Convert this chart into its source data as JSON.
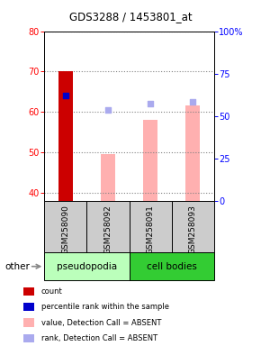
{
  "title": "GDS3288 / 1453801_at",
  "samples": [
    "GSM258090",
    "GSM258092",
    "GSM258091",
    "GSM258093"
  ],
  "ylim_left": [
    38,
    80
  ],
  "ylim_right": [
    0,
    100
  ],
  "yticks_left": [
    40,
    50,
    60,
    70,
    80
  ],
  "yticks_right": [
    0,
    25,
    50,
    75,
    100
  ],
  "count_values": [
    70.0,
    null,
    null,
    null
  ],
  "count_color": "#cc0000",
  "percentile_values": [
    64.0,
    null,
    null,
    null
  ],
  "percentile_color": "#0000cc",
  "absent_value_bars": [
    null,
    49.5,
    58.0,
    61.5
  ],
  "absent_value_color": "#ffb0b0",
  "absent_rank_dots": [
    null,
    60.5,
    62.0,
    62.5
  ],
  "absent_rank_color": "#aaaaee",
  "legend_items": [
    {
      "label": "count",
      "color": "#cc0000"
    },
    {
      "label": "percentile rank within the sample",
      "color": "#0000cc"
    },
    {
      "label": "value, Detection Call = ABSENT",
      "color": "#ffb0b0"
    },
    {
      "label": "rank, Detection Call = ABSENT",
      "color": "#aaaaee"
    }
  ],
  "bar_bottom": 38,
  "dot_size": 18,
  "bar_width": 0.35,
  "pseudopodia_color": "#bbffbb",
  "cell_bodies_color": "#33cc33",
  "sample_box_color": "#cccccc",
  "bg_color": "#ffffff"
}
